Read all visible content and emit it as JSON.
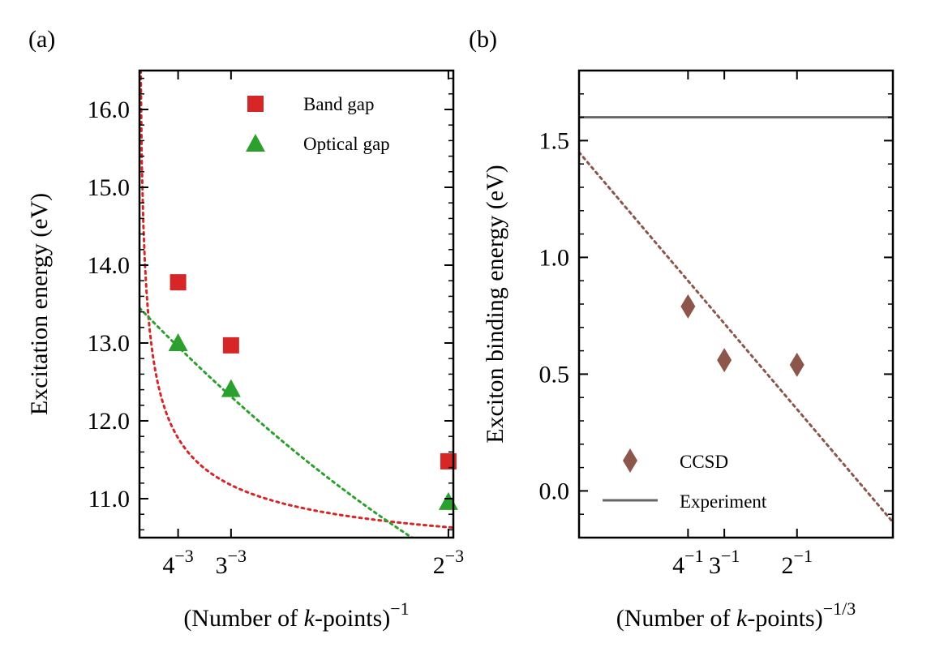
{
  "chart_data": [
    {
      "panel": "(a)",
      "type": "scatter",
      "xscale": "inverse number of k-points",
      "xlabel_main": "(Number of ",
      "xlabel_k": "k",
      "xlabel_rest": "-points)",
      "xlabel_sup": "−1",
      "ylabel": "Excitation energy (eV)",
      "xlim": [
        0,
        0.127
      ],
      "ylim": [
        10.5,
        16.5
      ],
      "xticks": [
        {
          "value": 0.015625,
          "base": "4",
          "exp": "−3"
        },
        {
          "value": 0.037037,
          "base": "3",
          "exp": "−3"
        },
        {
          "value": 0.125,
          "base": "2",
          "exp": "−3"
        }
      ],
      "yticks": [
        {
          "value": 11.0,
          "label": "11.0"
        },
        {
          "value": 12.0,
          "label": "12.0"
        },
        {
          "value": 13.0,
          "label": "13.0"
        },
        {
          "value": 14.0,
          "label": "14.0"
        },
        {
          "value": 15.0,
          "label": "15.0"
        },
        {
          "value": 16.0,
          "label": "16.0"
        }
      ],
      "series": [
        {
          "name": "Band gap",
          "marker": "square",
          "color": "#d62728",
          "x": [
            0.015625,
            0.037037,
            0.125
          ],
          "y": [
            13.78,
            12.97,
            11.48
          ],
          "fit": {
            "kind": "power",
            "A": 6.2,
            "B": 0.3,
            "exponent": 0.55,
            "xmin": 0.0003
          }
        },
        {
          "name": "Optical gap",
          "marker": "triangle",
          "color": "#2ca02c",
          "x": [
            0.015625,
            0.037037,
            0.125
          ],
          "y": [
            13.0,
            12.41,
            10.96
          ],
          "fit": {
            "kind": "quadratic",
            "c": [
              13.45,
              -32.72,
              54.06
            ],
            "xmin": 0.0
          }
        }
      ],
      "legend_position": "top-right"
    },
    {
      "panel": "(b)",
      "type": "scatter",
      "xscale": "(number of k-points)^(-1/3)",
      "xlabel_main": "(Number of ",
      "xlabel_k": "k",
      "xlabel_rest": "-points)",
      "xlabel_sup": "−1/3",
      "ylabel": "Exciton binding energy (eV)",
      "xlim": [
        0,
        0.72
      ],
      "ylim": [
        -0.2,
        1.8
      ],
      "xticks": [
        {
          "value": 0.25,
          "base": "4",
          "exp": "−1"
        },
        {
          "value": 0.3333,
          "base": "3",
          "exp": "−1"
        },
        {
          "value": 0.5,
          "base": "2",
          "exp": "−1"
        }
      ],
      "yticks": [
        {
          "value": 0.0,
          "label": "0.0"
        },
        {
          "value": 0.5,
          "label": "0.5"
        },
        {
          "value": 1.0,
          "label": "1.0"
        },
        {
          "value": 1.5,
          "label": "1.5"
        }
      ],
      "series": [
        {
          "name": "CCSD",
          "marker": "diamond",
          "color": "#8c564b",
          "x": [
            0.25,
            0.3333,
            0.5
          ],
          "y": [
            0.79,
            0.56,
            0.54
          ],
          "fit": {
            "kind": "linear",
            "intercept": 1.45,
            "slope": -2.2,
            "xmin": 0.0,
            "xmax": 0.72
          }
        }
      ],
      "reference": {
        "name": "Experiment",
        "value": 1.6,
        "color": "#666666"
      },
      "legend_position": "bottom-left"
    }
  ]
}
